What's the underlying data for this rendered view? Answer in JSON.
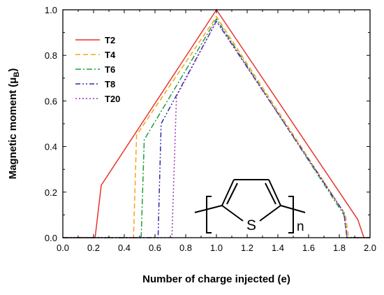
{
  "chart_data": {
    "type": "line",
    "xlabel": "Number of charge injected (e)",
    "ylabel": {
      "text": "Magnetic moment (μ",
      "sub": "B",
      "close": ")"
    },
    "xlim": [
      0.0,
      2.0
    ],
    "ylim": [
      0.0,
      1.0
    ],
    "x_ticks": [
      "0.0",
      "0.2",
      "0.4",
      "0.6",
      "0.8",
      "1.0",
      "1.2",
      "1.4",
      "1.6",
      "1.8",
      "2.0"
    ],
    "y_ticks": [
      "0.0",
      "0.2",
      "0.4",
      "0.6",
      "0.8",
      "1.0"
    ],
    "grid": false,
    "legend_placement": "top-left",
    "series": [
      {
        "name": "T2",
        "color": "#e8332a",
        "dash": "solid",
        "points": [
          [
            0,
            0
          ],
          [
            0.21,
            0
          ],
          [
            0.25,
            0.23
          ],
          [
            1.0,
            1.0
          ],
          [
            1.92,
            0.08
          ],
          [
            1.96,
            0
          ],
          [
            2.0,
            0
          ]
        ]
      },
      {
        "name": "T4",
        "color": "#f5a31a",
        "dash": "dash",
        "points": [
          [
            0,
            0
          ],
          [
            0.46,
            0
          ],
          [
            0.48,
            0.45
          ],
          [
            1.0,
            0.97
          ],
          [
            1.84,
            0.1
          ],
          [
            1.86,
            0
          ],
          [
            2.0,
            0
          ]
        ]
      },
      {
        "name": "T6",
        "color": "#1f9e3a",
        "dash": "dashdot",
        "points": [
          [
            0,
            0
          ],
          [
            0.51,
            0
          ],
          [
            0.53,
            0.43
          ],
          [
            1.0,
            0.96
          ],
          [
            1.83,
            0.1
          ],
          [
            1.85,
            0
          ],
          [
            2.0,
            0
          ]
        ]
      },
      {
        "name": "T8",
        "color": "#2d2ab0",
        "dash": "dashdotdot",
        "points": [
          [
            0,
            0
          ],
          [
            0.62,
            0
          ],
          [
            0.64,
            0.5
          ],
          [
            1.0,
            0.95
          ],
          [
            1.83,
            0.11
          ],
          [
            1.85,
            0
          ],
          [
            2.0,
            0
          ]
        ]
      },
      {
        "name": "T20",
        "color": "#9b2fb5",
        "dash": "dot",
        "points": [
          [
            0,
            0
          ],
          [
            0.71,
            0
          ],
          [
            0.74,
            0.62
          ],
          [
            1.0,
            0.95
          ],
          [
            1.83,
            0.11
          ],
          [
            1.85,
            0
          ],
          [
            2.0,
            0
          ]
        ]
      }
    ],
    "structure_inset": {
      "atom": "S",
      "subscript": "n"
    }
  }
}
